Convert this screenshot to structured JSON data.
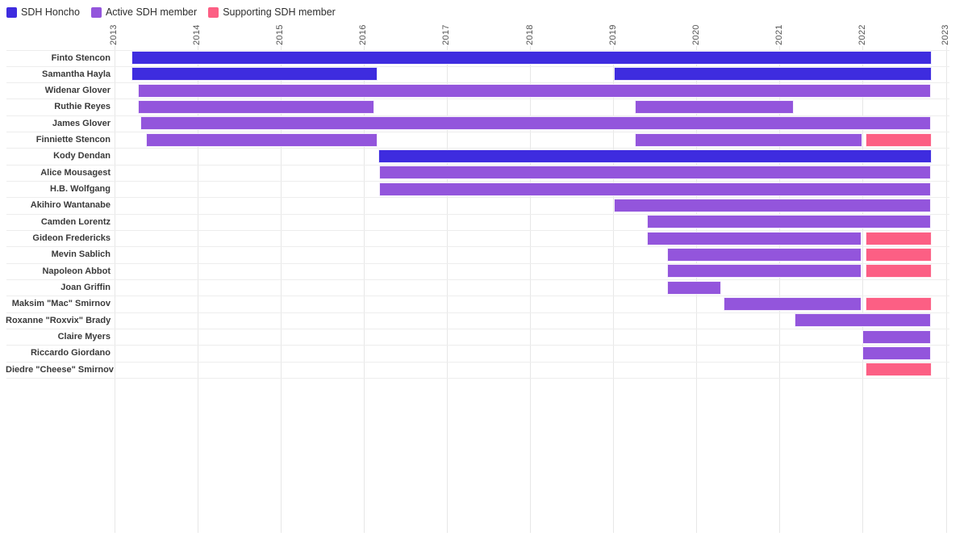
{
  "legend": {
    "items": [
      {
        "key": "honcho",
        "label": "SDH Honcho",
        "color": "#3e2cdf"
      },
      {
        "key": "active",
        "label": "Active SDH member",
        "color": "#9355dc"
      },
      {
        "key": "supporting",
        "label": "Supporting SDH member",
        "color": "#fc5f84"
      }
    ]
  },
  "chart_data": {
    "type": "gantt",
    "title": "",
    "x_axis": {
      "unit": "year",
      "min": 2013,
      "max": 2023,
      "ticks": [
        2013,
        2014,
        2015,
        2016,
        2017,
        2018,
        2019,
        2020,
        2021,
        2022,
        2023
      ],
      "position": "top",
      "tick_label_rotation": -90,
      "grid": true
    },
    "colors": {
      "honcho": "#3e2cdf",
      "active": "#9355dc",
      "supporting": "#fc5f84"
    },
    "rows": [
      {
        "name": "Finto Stencon",
        "segments": [
          {
            "role": "honcho",
            "start": 2013.2,
            "end": 2022.83
          }
        ]
      },
      {
        "name": "Samantha Hayla",
        "segments": [
          {
            "role": "honcho",
            "start": 2013.2,
            "end": 2016.16
          },
          {
            "role": "honcho",
            "start": 2019.0,
            "end": 2022.83
          }
        ]
      },
      {
        "name": "Widenar Glover",
        "segments": [
          {
            "role": "active",
            "start": 2013.28,
            "end": 2022.82
          }
        ]
      },
      {
        "name": "Ruthie Reyes",
        "segments": [
          {
            "role": "active",
            "start": 2013.28,
            "end": 2016.12
          },
          {
            "role": "active",
            "start": 2019.26,
            "end": 2021.17
          }
        ]
      },
      {
        "name": "James Glover",
        "segments": [
          {
            "role": "active",
            "start": 2013.31,
            "end": 2022.82
          }
        ]
      },
      {
        "name": "Finniette Stencon",
        "segments": [
          {
            "role": "active",
            "start": 2013.38,
            "end": 2016.16
          },
          {
            "role": "active",
            "start": 2019.26,
            "end": 2021.99
          },
          {
            "role": "supporting",
            "start": 2022.03,
            "end": 2022.83
          }
        ]
      },
      {
        "name": "Kody Dendan",
        "segments": [
          {
            "role": "honcho",
            "start": 2016.17,
            "end": 2022.83
          }
        ]
      },
      {
        "name": "Alice Mousagest",
        "segments": [
          {
            "role": "active",
            "start": 2016.18,
            "end": 2022.82
          }
        ]
      },
      {
        "name": "H.B. Wolfgang",
        "segments": [
          {
            "role": "active",
            "start": 2016.18,
            "end": 2022.82
          }
        ]
      },
      {
        "name": "Akihiro Wantanabe",
        "segments": [
          {
            "role": "active",
            "start": 2019.0,
            "end": 2022.82
          }
        ]
      },
      {
        "name": "Camden Lorentz",
        "segments": [
          {
            "role": "active",
            "start": 2019.4,
            "end": 2022.82
          }
        ]
      },
      {
        "name": "Gideon Fredericks",
        "segments": [
          {
            "role": "active",
            "start": 2019.4,
            "end": 2021.98
          },
          {
            "role": "supporting",
            "start": 2022.03,
            "end": 2022.83
          }
        ]
      },
      {
        "name": "Mevin Sablich",
        "segments": [
          {
            "role": "active",
            "start": 2019.64,
            "end": 2021.98
          },
          {
            "role": "supporting",
            "start": 2022.03,
            "end": 2022.83
          }
        ]
      },
      {
        "name": "Napoleon Abbot",
        "segments": [
          {
            "role": "active",
            "start": 2019.64,
            "end": 2021.98
          },
          {
            "role": "supporting",
            "start": 2022.03,
            "end": 2022.83
          }
        ]
      },
      {
        "name": "Joan Griffin",
        "segments": [
          {
            "role": "active",
            "start": 2019.64,
            "end": 2020.29
          }
        ]
      },
      {
        "name": "Maksim \"Mac\" Smirnov",
        "segments": [
          {
            "role": "active",
            "start": 2020.32,
            "end": 2021.98
          },
          {
            "role": "supporting",
            "start": 2022.03,
            "end": 2022.83
          }
        ]
      },
      {
        "name": "Roxanne \"Roxvix\" Brady",
        "segments": [
          {
            "role": "active",
            "start": 2021.18,
            "end": 2022.82
          }
        ]
      },
      {
        "name": "Claire Myers",
        "segments": [
          {
            "role": "active",
            "start": 2021.99,
            "end": 2022.82
          }
        ]
      },
      {
        "name": "Riccardo Giordano",
        "segments": [
          {
            "role": "active",
            "start": 2021.99,
            "end": 2022.82
          }
        ]
      },
      {
        "name": "Diedre \"Cheese\" Smirnov",
        "segments": [
          {
            "role": "supporting",
            "start": 2022.03,
            "end": 2022.83
          }
        ]
      }
    ]
  }
}
